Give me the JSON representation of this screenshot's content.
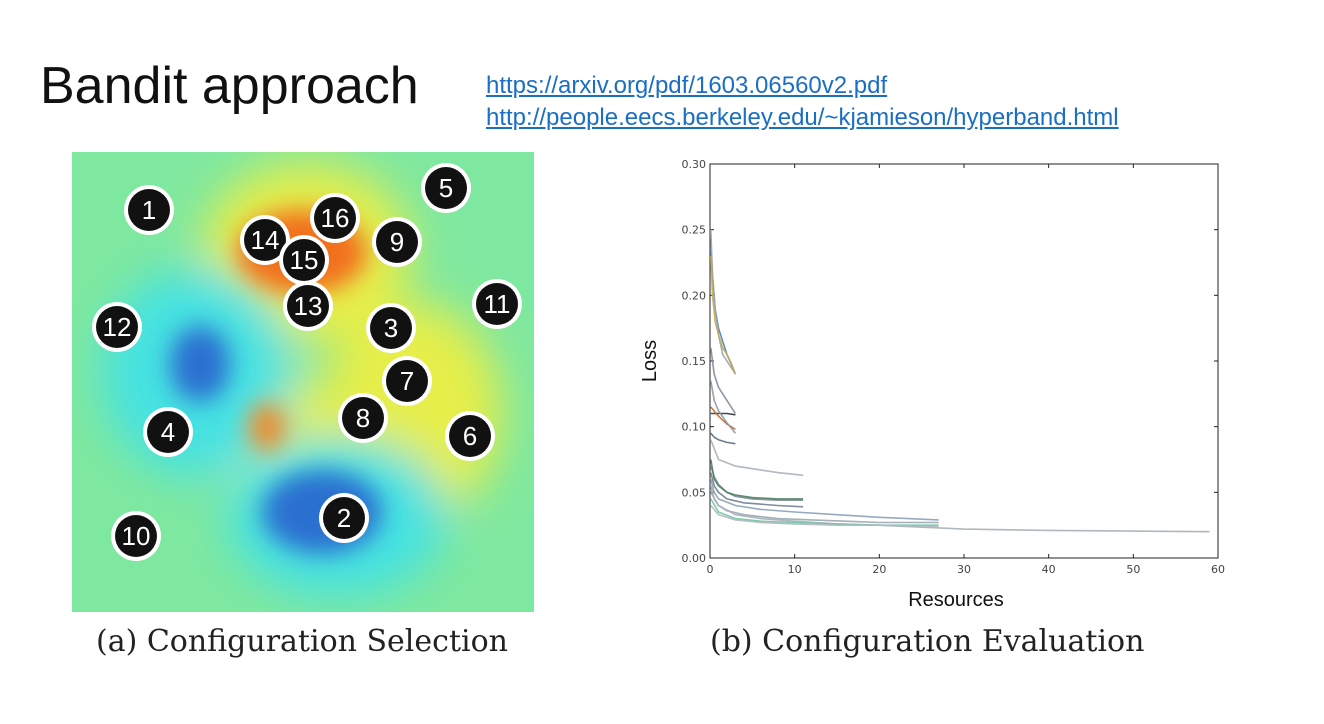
{
  "title": "Bandit approach",
  "links": [
    "https://arxiv.org/pdf/1603.06560v2.pdf",
    "http://people.eecs.berkeley.edu/~kjamieson/hyperband.html"
  ],
  "colors": {
    "background": "#7fe8a0",
    "hot": "#f2701e",
    "warm": "#e8ef4a",
    "cool": "#3fe3e6",
    "cold": "#2a6fd0",
    "marker": "#111111",
    "link": "#1a6fc4"
  },
  "captions": {
    "a": "(a) Configuration Selection",
    "b": "(b) Configuration Evaluation"
  },
  "chart_data": [
    {
      "type": "heatmap",
      "markers": [
        {
          "label": "1"
        },
        {
          "label": "5"
        },
        {
          "label": "16"
        },
        {
          "label": "14"
        },
        {
          "label": "9"
        },
        {
          "label": "15"
        },
        {
          "label": "13"
        },
        {
          "label": "11"
        },
        {
          "label": "12"
        },
        {
          "label": "3"
        },
        {
          "label": "7"
        },
        {
          "label": "8"
        },
        {
          "label": "4"
        },
        {
          "label": "6"
        },
        {
          "label": "2"
        },
        {
          "label": "10"
        }
      ]
    },
    {
      "type": "line",
      "xlabel": "Resources",
      "ylabel": "Loss",
      "xlim": [
        0,
        60
      ],
      "ylim": [
        0,
        0.3
      ],
      "xticks": [
        "0",
        "10",
        "20",
        "30",
        "40",
        "50",
        "60"
      ],
      "yticks": [
        "0.00",
        "0.05",
        "0.10",
        "0.15",
        "0.20",
        "0.25",
        "0.30"
      ],
      "series": [
        {
          "color": "#4a7fc0",
          "x": [
            0.1,
            0.3,
            0.6,
            1,
            1.5,
            2,
            2.5,
            3
          ],
          "y": [
            0.235,
            0.215,
            0.19,
            0.175,
            0.165,
            0.155,
            0.148,
            0.14
          ]
        },
        {
          "color": "#9aa3ab",
          "x": [
            0.1,
            0.3,
            0.6,
            1,
            1.5,
            2,
            2.5,
            3
          ],
          "y": [
            0.25,
            0.215,
            0.19,
            0.17,
            0.155,
            0.15,
            0.145,
            0.14
          ]
        },
        {
          "color": "#c7ad4e",
          "x": [
            0.1,
            0.3,
            0.6,
            1,
            1.5,
            2,
            3
          ],
          "y": [
            0.23,
            0.2,
            0.18,
            0.17,
            0.16,
            0.155,
            0.14
          ]
        },
        {
          "color": "#7f8c99",
          "x": [
            0.1,
            0.5,
            1,
            2,
            3
          ],
          "y": [
            0.16,
            0.14,
            0.13,
            0.12,
            0.11
          ]
        },
        {
          "color": "#333333",
          "x": [
            0.1,
            1,
            2,
            3
          ],
          "y": [
            0.11,
            0.11,
            0.11,
            0.109
          ]
        },
        {
          "color": "#c86a2a",
          "x": [
            0.1,
            1,
            2,
            3
          ],
          "y": [
            0.115,
            0.108,
            0.102,
            0.098
          ]
        },
        {
          "color": "#8a98a8",
          "x": [
            0.1,
            0.5,
            1,
            2,
            3
          ],
          "y": [
            0.135,
            0.12,
            0.112,
            0.103,
            0.095
          ]
        },
        {
          "color": "#5a6f85",
          "x": [
            0.1,
            0.5,
            1,
            1.5,
            2,
            3
          ],
          "y": [
            0.095,
            0.092,
            0.09,
            0.089,
            0.088,
            0.087
          ]
        },
        {
          "color": "#a7b1ba",
          "x": [
            0.1,
            1,
            3,
            5,
            8,
            11
          ],
          "y": [
            0.09,
            0.075,
            0.07,
            0.068,
            0.065,
            0.063
          ]
        },
        {
          "color": "#7b8a9a",
          "x": [
            0.1,
            0.5,
            1,
            2,
            3,
            5,
            8,
            11
          ],
          "y": [
            0.07,
            0.062,
            0.056,
            0.05,
            0.047,
            0.045,
            0.044,
            0.044
          ]
        },
        {
          "color": "#4f8060",
          "x": [
            0.1,
            0.5,
            1,
            2,
            3,
            5,
            8,
            11
          ],
          "y": [
            0.075,
            0.06,
            0.055,
            0.05,
            0.048,
            0.046,
            0.045,
            0.045
          ]
        },
        {
          "color": "#6f7f93",
          "x": [
            0.1,
            0.5,
            1,
            2,
            4,
            8,
            11
          ],
          "y": [
            0.065,
            0.055,
            0.05,
            0.045,
            0.042,
            0.04,
            0.039
          ]
        },
        {
          "color": "#8aa1b6",
          "x": [
            0.1,
            0.5,
            1,
            3,
            6,
            10,
            15,
            20,
            27
          ],
          "y": [
            0.06,
            0.05,
            0.045,
            0.04,
            0.037,
            0.035,
            0.033,
            0.031,
            0.029
          ]
        },
        {
          "color": "#9aa6b1",
          "x": [
            0.1,
            0.5,
            1,
            2,
            4,
            8,
            12,
            16,
            20,
            27
          ],
          "y": [
            0.055,
            0.045,
            0.04,
            0.036,
            0.033,
            0.03,
            0.029,
            0.028,
            0.027,
            0.027
          ]
        },
        {
          "color": "#a6b0b8",
          "x": [
            0.1,
            1,
            3,
            6,
            10,
            15,
            20,
            30,
            40,
            50,
            59
          ],
          "y": [
            0.05,
            0.04,
            0.033,
            0.03,
            0.028,
            0.026,
            0.025,
            0.022,
            0.021,
            0.0205,
            0.02
          ]
        },
        {
          "color": "#6fc7a0",
          "x": [
            0.1,
            1,
            3,
            6,
            10,
            15,
            20,
            27
          ],
          "y": [
            0.045,
            0.035,
            0.03,
            0.028,
            0.027,
            0.026,
            0.025,
            0.025
          ]
        },
        {
          "color": "#b0b8c0",
          "x": [
            0.1,
            1,
            3,
            6,
            10,
            15,
            20,
            27
          ],
          "y": [
            0.04,
            0.033,
            0.029,
            0.027,
            0.026,
            0.025,
            0.025,
            0.024
          ]
        }
      ]
    }
  ]
}
